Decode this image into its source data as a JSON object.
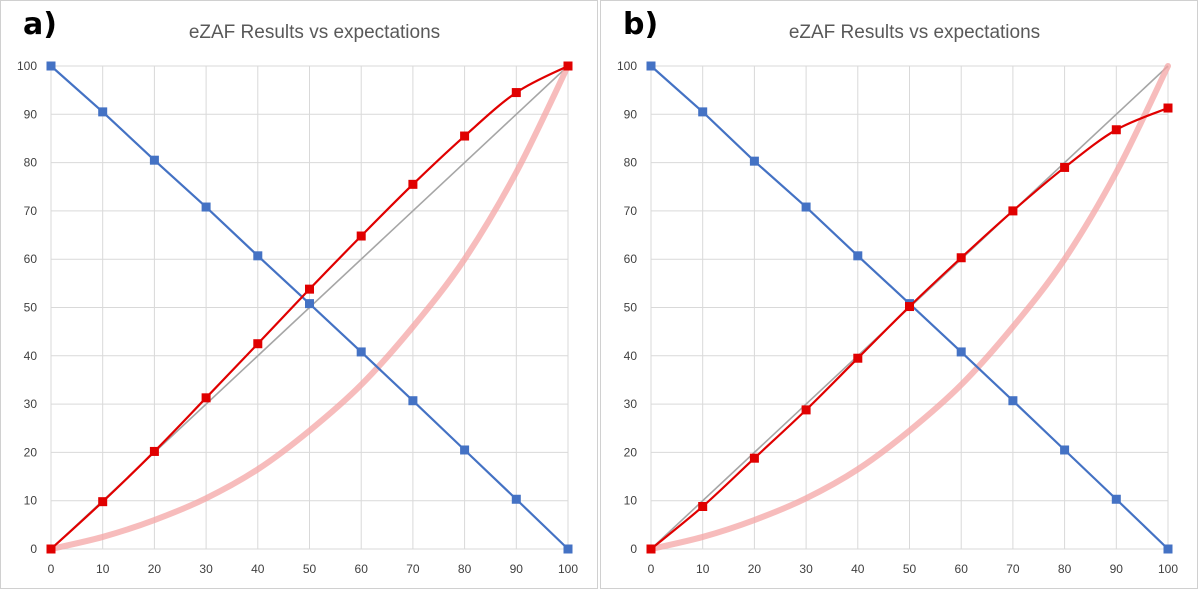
{
  "colors": {
    "declining": "#4472c4",
    "measured": "#e00000",
    "ideal": "#a6a6a6",
    "expected_curve": "#f4a6a6",
    "grid": "#d9d9d9"
  },
  "chart_data": [
    {
      "type": "line",
      "panel_label": "a)",
      "title": "eZAF Results vs expectations",
      "xlabel": "",
      "ylabel": "",
      "xlim": [
        0,
        100
      ],
      "ylim": [
        0,
        100
      ],
      "xticks": [
        0,
        10,
        20,
        30,
        40,
        50,
        60,
        70,
        80,
        90,
        100
      ],
      "yticks": [
        0,
        10,
        20,
        30,
        40,
        50,
        60,
        70,
        80,
        90,
        100
      ],
      "grid": true,
      "legend": "none",
      "series": [
        {
          "key": "ideal",
          "style": "line",
          "x": [
            0,
            100
          ],
          "y": [
            0,
            100
          ]
        },
        {
          "key": "expected_curve",
          "style": "thick-line",
          "x": [
            0,
            10,
            20,
            30,
            40,
            50,
            60,
            70,
            80,
            90,
            100
          ],
          "y": [
            0,
            2.5,
            6,
            10.5,
            16.5,
            24.5,
            34,
            46,
            60,
            78,
            100
          ]
        },
        {
          "key": "declining",
          "style": "line-markers",
          "x": [
            0,
            10,
            20,
            30,
            40,
            50,
            60,
            70,
            80,
            90,
            100
          ],
          "y": [
            100,
            90.5,
            80.5,
            70.8,
            60.7,
            50.8,
            40.8,
            30.7,
            20.5,
            10.3,
            0
          ]
        },
        {
          "key": "measured",
          "style": "line-markers",
          "x": [
            0,
            10,
            20,
            30,
            40,
            50,
            60,
            70,
            80,
            90,
            100
          ],
          "y": [
            0,
            9.8,
            20.2,
            31.3,
            42.5,
            53.8,
            64.8,
            75.5,
            85.5,
            94.5,
            100
          ]
        }
      ]
    },
    {
      "type": "line",
      "panel_label": "b)",
      "title": "eZAF Results vs expectations",
      "xlabel": "",
      "ylabel": "",
      "xlim": [
        0,
        100
      ],
      "ylim": [
        0,
        100
      ],
      "xticks": [
        0,
        10,
        20,
        30,
        40,
        50,
        60,
        70,
        80,
        90,
        100
      ],
      "yticks": [
        0,
        10,
        20,
        30,
        40,
        50,
        60,
        70,
        80,
        90,
        100
      ],
      "grid": true,
      "legend": "none",
      "series": [
        {
          "key": "ideal",
          "style": "line",
          "x": [
            0,
            100
          ],
          "y": [
            0,
            100
          ]
        },
        {
          "key": "expected_curve",
          "style": "thick-line",
          "x": [
            0,
            10,
            20,
            30,
            40,
            50,
            60,
            70,
            80,
            90,
            100
          ],
          "y": [
            0,
            2.5,
            6,
            10.5,
            16.5,
            24.5,
            34,
            46,
            60,
            78,
            100
          ]
        },
        {
          "key": "declining",
          "style": "line-markers",
          "x": [
            0,
            10,
            20,
            30,
            40,
            50,
            60,
            70,
            80,
            90,
            100
          ],
          "y": [
            100,
            90.5,
            80.3,
            70.8,
            60.7,
            50.8,
            40.8,
            30.7,
            20.5,
            10.3,
            0
          ]
        },
        {
          "key": "measured",
          "style": "line-markers",
          "x": [
            0,
            10,
            20,
            30,
            40,
            50,
            60,
            70,
            80,
            90,
            100
          ],
          "y": [
            0,
            8.8,
            18.8,
            28.8,
            39.5,
            50.2,
            60.3,
            70,
            79,
            86.8,
            91.3
          ]
        }
      ]
    }
  ]
}
